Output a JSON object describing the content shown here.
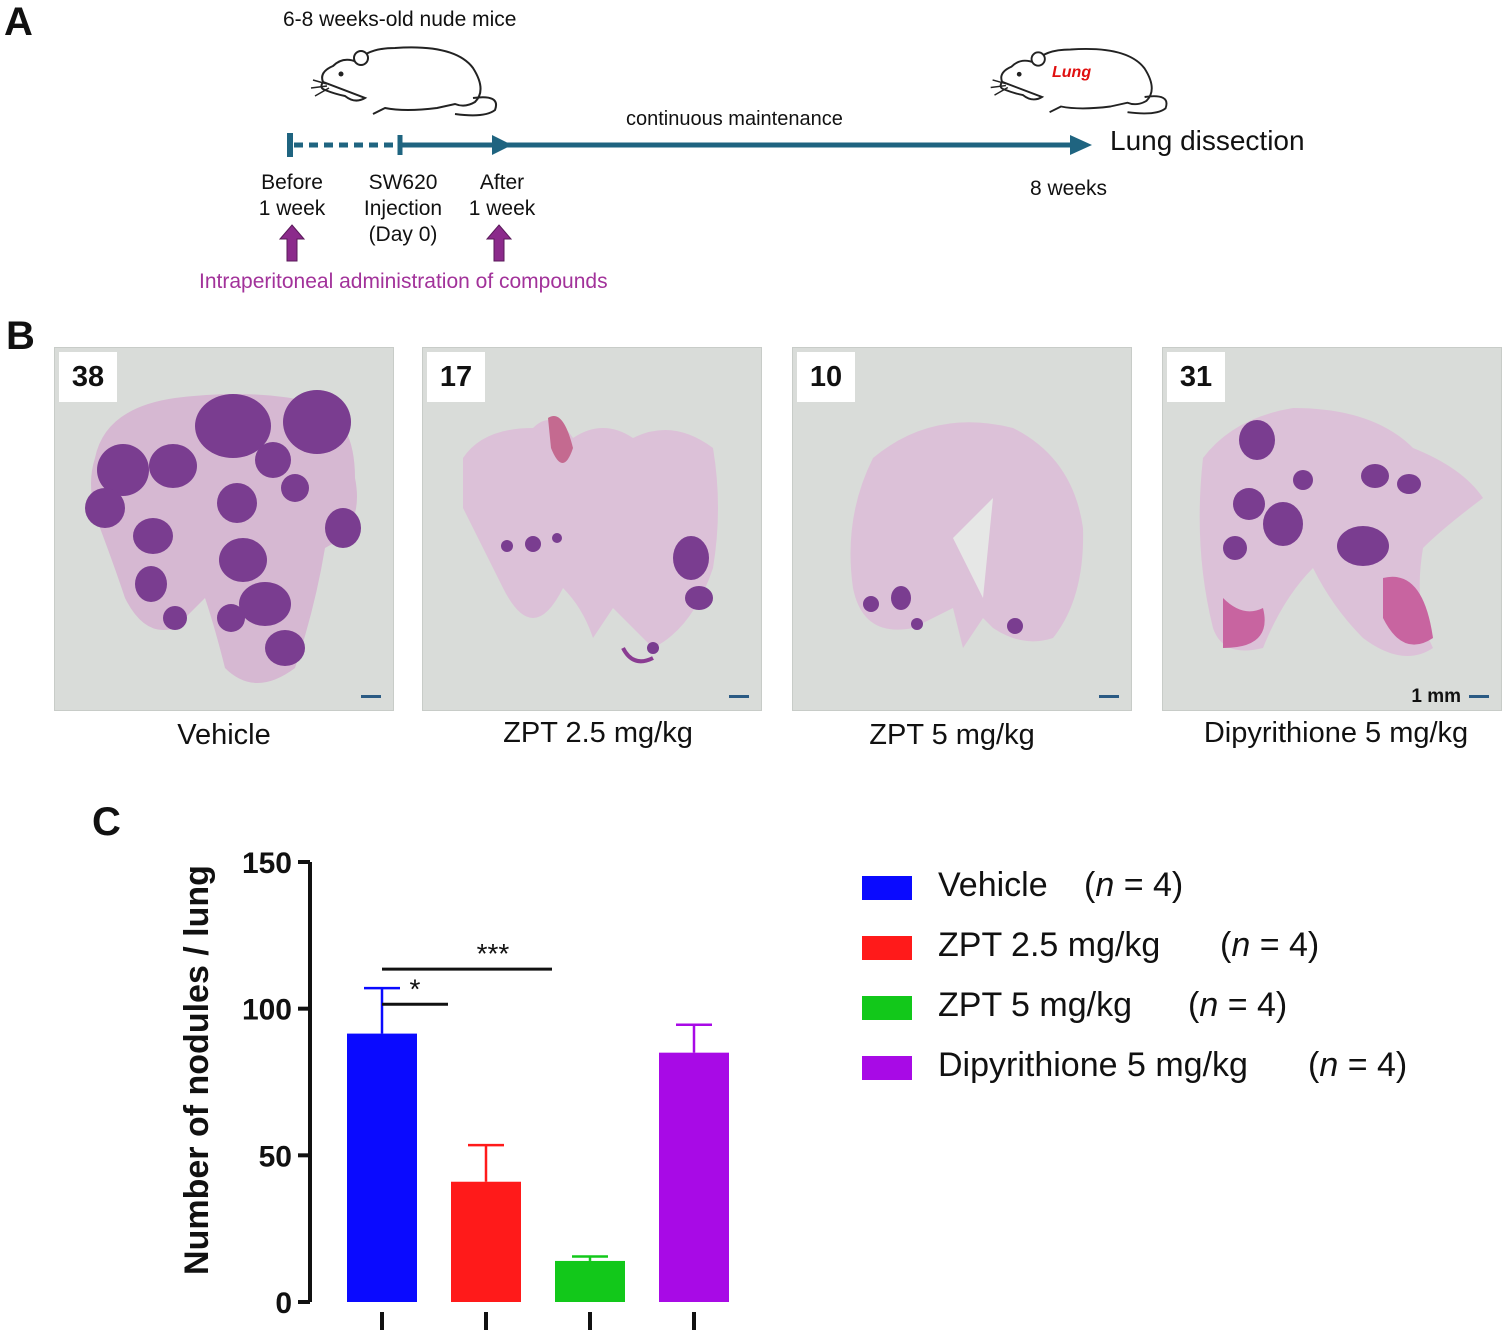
{
  "panel_a": {
    "letter": "A",
    "mouse_title": "6-8 weeks-old nude mice",
    "lung_label": "Lung",
    "maintenance_label": "continuous maintenance",
    "end_label": "Lung dissection",
    "before": {
      "line1": "Before",
      "line2": "1 week"
    },
    "injection": {
      "line1": "SW620",
      "line2": "Injection",
      "line3": "(Day 0)"
    },
    "after": {
      "line1": "After",
      "line2": "1 week"
    },
    "weeks_label": "8 weeks",
    "admin_label": "Intraperitoneal administration of compounds",
    "colors": {
      "timeline": "#1f6480",
      "arrow": "#8b2a8b",
      "admin_text": "#a2329a",
      "lung_text": "#e01010"
    }
  },
  "panel_b": {
    "letter": "B",
    "scale_label": "1 mm",
    "images": [
      {
        "count": "38",
        "label": "Vehicle"
      },
      {
        "count": "17",
        "label": "ZPT 2.5 mg/kg"
      },
      {
        "count": "10",
        "label": "ZPT 5 mg/kg"
      },
      {
        "count": "31",
        "label": "Dipyrithione 5 mg/kg"
      }
    ]
  },
  "panel_c": {
    "letter": "C",
    "legend": [
      {
        "label": "Vehicle",
        "n_var": "n",
        "n_rest": " = 4",
        "color": "#0a0aff"
      },
      {
        "label": "ZPT 2.5 mg/kg",
        "n_var": "n",
        "n_rest": " = 4",
        "color": "#ff1a1a"
      },
      {
        "label": "ZPT 5 mg/kg",
        "n_var": "n",
        "n_rest": " = 4",
        "color": "#12c81a"
      },
      {
        "label": "Dipyrithione 5 mg/kg",
        "n_var": "n",
        "n_rest": " = 4",
        "color": "#a80ae6"
      }
    ]
  },
  "chart_data": {
    "type": "bar",
    "ylabel": "Number of nodules / lung",
    "xlabel": "",
    "ylim": [
      0,
      150
    ],
    "yticks": [
      0,
      50,
      100,
      150
    ],
    "categories": [
      "Vehicle",
      "ZPT 2.5 mg/kg",
      "ZPT 5 mg/kg",
      "Dipyrithione 5 mg/kg"
    ],
    "values": [
      91.5,
      41,
      14,
      85
    ],
    "errors": [
      15.5,
      12.5,
      1.5,
      9.5
    ],
    "colors": [
      "#0a0aff",
      "#ff1a1a",
      "#12c81a",
      "#a80ae6"
    ],
    "significance": [
      {
        "from": 0,
        "to": 1,
        "label": "*"
      },
      {
        "from": 0,
        "to": 2,
        "label": "***"
      }
    ]
  }
}
